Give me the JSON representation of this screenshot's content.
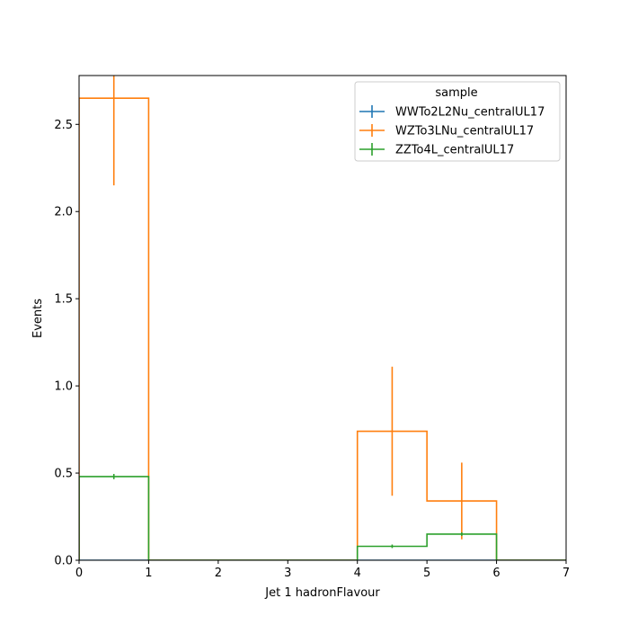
{
  "chart_data": {
    "type": "step-histogram",
    "xlabel": "Jet 1 hadronFlavour",
    "ylabel": "Events",
    "xlim": [
      0,
      7
    ],
    "ylim": [
      0,
      2.78
    ],
    "x_ticks": [
      "0",
      "1",
      "2",
      "3",
      "4",
      "5",
      "6",
      "7"
    ],
    "y_ticks": [
      "0.0",
      "0.5",
      "1.0",
      "1.5",
      "2.0",
      "2.5"
    ],
    "bin_edges": [
      0,
      1,
      2,
      3,
      4,
      5,
      6,
      7
    ],
    "legend": {
      "title": "sample",
      "position": "top-right"
    },
    "series": [
      {
        "name": "WWTo2L2Nu_centralUL17",
        "color": "#1f77b4",
        "values": [
          0,
          0,
          0,
          0,
          0,
          0,
          0
        ],
        "errors": [
          0,
          0,
          0,
          0,
          0,
          0,
          0
        ]
      },
      {
        "name": "WZTo3LNu_centralUL17",
        "color": "#ff7f0e",
        "values": [
          2.65,
          0,
          0,
          0,
          0.74,
          0.34,
          0
        ],
        "errors": [
          0.5,
          0,
          0,
          0,
          0.37,
          0.22,
          0
        ]
      },
      {
        "name": "ZZTo4L_centralUL17",
        "color": "#2ca02c",
        "values": [
          0.48,
          0,
          0,
          0,
          0.08,
          0.15,
          0
        ],
        "errors": [
          0.015,
          0,
          0,
          0,
          0.01,
          0.01,
          0
        ]
      }
    ]
  }
}
